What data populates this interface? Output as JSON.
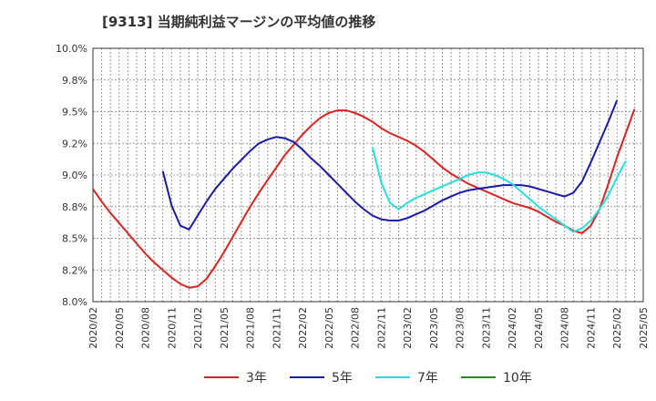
{
  "chart_data": {
    "type": "line",
    "title": "[9313]  当期純利益マージンの平均値の推移",
    "xlabel": "",
    "ylabel": "",
    "ylim": [
      8.0,
      10.0
    ],
    "y_ticks": [
      "8.0%",
      "8.2%",
      "8.5%",
      "8.8%",
      "9.0%",
      "9.2%",
      "9.5%",
      "9.8%",
      "10.0%"
    ],
    "y_tick_values": [
      8.0,
      8.25,
      8.5,
      8.75,
      9.0,
      9.25,
      9.5,
      9.75,
      10.0
    ],
    "x_categories": [
      "2020/02",
      "2020/05",
      "2020/08",
      "2020/11",
      "2021/02",
      "2021/05",
      "2021/08",
      "2021/11",
      "2022/02",
      "2022/05",
      "2022/08",
      "2022/11",
      "2023/02",
      "2023/05",
      "2023/08",
      "2023/11",
      "2024/02",
      "2024/05",
      "2024/08",
      "2024/11",
      "2025/02",
      "2025/05"
    ],
    "grid": true,
    "legend_position": "bottom",
    "series": [
      {
        "name": "3年",
        "color": "#dd2222",
        "points": [
          [
            "2020/02",
            8.89
          ],
          [
            "2020/03",
            8.79
          ],
          [
            "2020/04",
            8.7
          ],
          [
            "2020/05",
            8.62
          ],
          [
            "2020/06",
            8.54
          ],
          [
            "2020/07",
            8.46
          ],
          [
            "2020/08",
            8.38
          ],
          [
            "2020/09",
            8.31
          ],
          [
            "2020/10",
            8.25
          ],
          [
            "2020/11",
            8.19
          ],
          [
            "2020/12",
            8.14
          ],
          [
            "2021/01",
            8.11
          ],
          [
            "2021/02",
            8.12
          ],
          [
            "2021/03",
            8.18
          ],
          [
            "2021/04",
            8.28
          ],
          [
            "2021/05",
            8.39
          ],
          [
            "2021/06",
            8.51
          ],
          [
            "2021/07",
            8.63
          ],
          [
            "2021/08",
            8.75
          ],
          [
            "2021/09",
            8.86
          ],
          [
            "2021/10",
            8.96
          ],
          [
            "2021/11",
            9.06
          ],
          [
            "2021/12",
            9.16
          ],
          [
            "2022/01",
            9.24
          ],
          [
            "2022/02",
            9.32
          ],
          [
            "2022/03",
            9.39
          ],
          [
            "2022/04",
            9.45
          ],
          [
            "2022/05",
            9.49
          ],
          [
            "2022/06",
            9.51
          ],
          [
            "2022/07",
            9.51
          ],
          [
            "2022/08",
            9.49
          ],
          [
            "2022/09",
            9.46
          ],
          [
            "2022/10",
            9.42
          ],
          [
            "2022/11",
            9.37
          ],
          [
            "2022/12",
            9.33
          ],
          [
            "2023/01",
            9.3
          ],
          [
            "2023/02",
            9.27
          ],
          [
            "2023/03",
            9.23
          ],
          [
            "2023/04",
            9.18
          ],
          [
            "2023/05",
            9.12
          ],
          [
            "2023/06",
            9.06
          ],
          [
            "2023/07",
            9.01
          ],
          [
            "2023/08",
            8.97
          ],
          [
            "2023/09",
            8.93
          ],
          [
            "2023/10",
            8.9
          ],
          [
            "2023/11",
            8.87
          ],
          [
            "2023/12",
            8.84
          ],
          [
            "2024/01",
            8.81
          ],
          [
            "2024/02",
            8.78
          ],
          [
            "2024/03",
            8.76
          ],
          [
            "2024/04",
            8.74
          ],
          [
            "2024/05",
            8.71
          ],
          [
            "2024/06",
            8.67
          ],
          [
            "2024/07",
            8.63
          ],
          [
            "2024/08",
            8.6
          ],
          [
            "2024/09",
            8.56
          ],
          [
            "2024/10",
            8.54
          ],
          [
            "2024/11",
            8.6
          ],
          [
            "2024/12",
            8.73
          ],
          [
            "2025/01",
            8.93
          ],
          [
            "2025/02",
            9.14
          ],
          [
            "2025/03",
            9.33
          ],
          [
            "2025/04",
            9.52
          ]
        ]
      },
      {
        "name": "5年",
        "color": "#1a1aaa",
        "points": [
          [
            "2020/10",
            9.03
          ],
          [
            "2020/11",
            8.76
          ],
          [
            "2020/12",
            8.6
          ],
          [
            "2021/01",
            8.57
          ],
          [
            "2021/02",
            8.68
          ],
          [
            "2021/03",
            8.79
          ],
          [
            "2021/04",
            8.89
          ],
          [
            "2021/05",
            8.97
          ],
          [
            "2021/06",
            9.05
          ],
          [
            "2021/07",
            9.12
          ],
          [
            "2021/08",
            9.19
          ],
          [
            "2021/09",
            9.25
          ],
          [
            "2021/10",
            9.28
          ],
          [
            "2021/11",
            9.3
          ],
          [
            "2021/12",
            9.29
          ],
          [
            "2022/01",
            9.26
          ],
          [
            "2022/02",
            9.2
          ],
          [
            "2022/03",
            9.13
          ],
          [
            "2022/04",
            9.07
          ],
          [
            "2022/05",
            9.0
          ],
          [
            "2022/06",
            8.93
          ],
          [
            "2022/07",
            8.86
          ],
          [
            "2022/08",
            8.79
          ],
          [
            "2022/09",
            8.73
          ],
          [
            "2022/10",
            8.68
          ],
          [
            "2022/11",
            8.65
          ],
          [
            "2022/12",
            8.64
          ],
          [
            "2023/01",
            8.64
          ],
          [
            "2023/02",
            8.66
          ],
          [
            "2023/03",
            8.69
          ],
          [
            "2023/04",
            8.72
          ],
          [
            "2023/05",
            8.76
          ],
          [
            "2023/06",
            8.8
          ],
          [
            "2023/07",
            8.83
          ],
          [
            "2023/08",
            8.86
          ],
          [
            "2023/09",
            8.88
          ],
          [
            "2023/10",
            8.89
          ],
          [
            "2023/11",
            8.9
          ],
          [
            "2023/12",
            8.91
          ],
          [
            "2024/01",
            8.92
          ],
          [
            "2024/02",
            8.92
          ],
          [
            "2024/03",
            8.92
          ],
          [
            "2024/04",
            8.91
          ],
          [
            "2024/05",
            8.89
          ],
          [
            "2024/06",
            8.87
          ],
          [
            "2024/07",
            8.85
          ],
          [
            "2024/08",
            8.83
          ],
          [
            "2024/09",
            8.86
          ],
          [
            "2024/10",
            8.95
          ],
          [
            "2024/11",
            9.1
          ],
          [
            "2024/12",
            9.26
          ],
          [
            "2025/01",
            9.42
          ],
          [
            "2025/02",
            9.59
          ]
        ]
      },
      {
        "name": "7年",
        "color": "#22e0e0",
        "points": [
          [
            "2022/10",
            9.22
          ],
          [
            "2022/11",
            8.94
          ],
          [
            "2022/12",
            8.78
          ],
          [
            "2023/01",
            8.73
          ],
          [
            "2023/02",
            8.78
          ],
          [
            "2023/03",
            8.82
          ],
          [
            "2023/04",
            8.85
          ],
          [
            "2023/05",
            8.88
          ],
          [
            "2023/06",
            8.91
          ],
          [
            "2023/07",
            8.94
          ],
          [
            "2023/08",
            8.97
          ],
          [
            "2023/09",
            9.0
          ],
          [
            "2023/10",
            9.02
          ],
          [
            "2023/11",
            9.02
          ],
          [
            "2023/12",
            9.0
          ],
          [
            "2024/01",
            8.97
          ],
          [
            "2024/02",
            8.93
          ],
          [
            "2024/03",
            8.87
          ],
          [
            "2024/04",
            8.81
          ],
          [
            "2024/05",
            8.75
          ],
          [
            "2024/06",
            8.7
          ],
          [
            "2024/07",
            8.65
          ],
          [
            "2024/08",
            8.6
          ],
          [
            "2024/09",
            8.55
          ],
          [
            "2024/10",
            8.58
          ],
          [
            "2024/11",
            8.64
          ],
          [
            "2024/12",
            8.73
          ],
          [
            "2025/01",
            8.84
          ],
          [
            "2025/02",
            8.98
          ],
          [
            "2025/03",
            9.11
          ]
        ]
      },
      {
        "name": "10年",
        "color": "#228b22",
        "points": []
      }
    ]
  }
}
